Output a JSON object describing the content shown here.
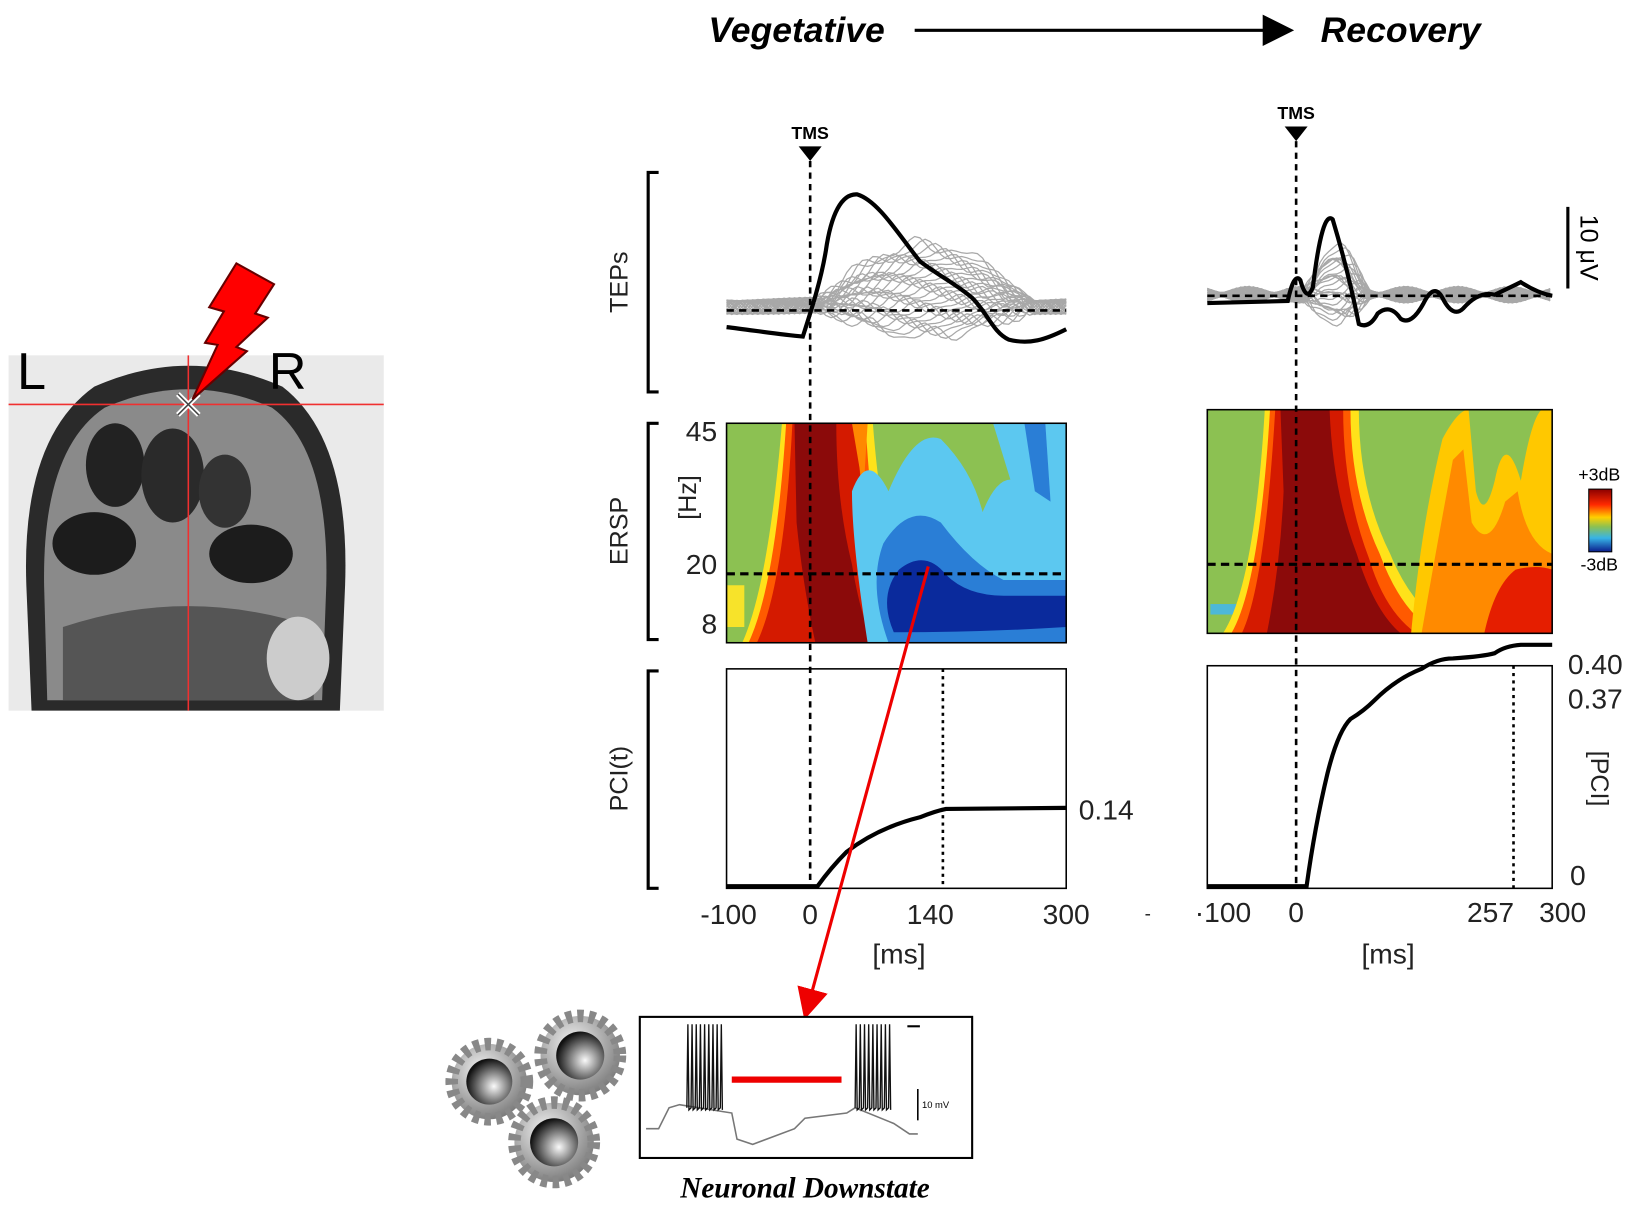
{
  "header": {
    "from": "Vegetative",
    "to": "Recovery"
  },
  "mri": {
    "left": "L",
    "right": "R"
  },
  "rows": {
    "teps": "TEPs",
    "ersp": "ERSP",
    "pci": "PCI(t)"
  },
  "stimulus": "TMS",
  "ersp_axis": {
    "unit": "[Hz]",
    "ticks": [
      "45",
      "20",
      "8"
    ]
  },
  "colorbar": {
    "max": "+3dB",
    "min": "-3dB"
  },
  "scale_bar": "10 μV",
  "vegetative": {
    "x_ticks": [
      "-100",
      "0",
      "140",
      "300"
    ],
    "x_label": "[ms]",
    "pci_value": "0.14"
  },
  "separator": "-",
  "recovery": {
    "x_ticks": [
      "·100",
      "0",
      "257",
      "300"
    ],
    "x_label": "[ms]",
    "pci_ticks": [
      "0.40",
      "0.37",
      "0"
    ],
    "pci_unit": "[PCI]"
  },
  "inset": {
    "scale": "10 mV",
    "caption": "Neuronal Downstate"
  }
}
